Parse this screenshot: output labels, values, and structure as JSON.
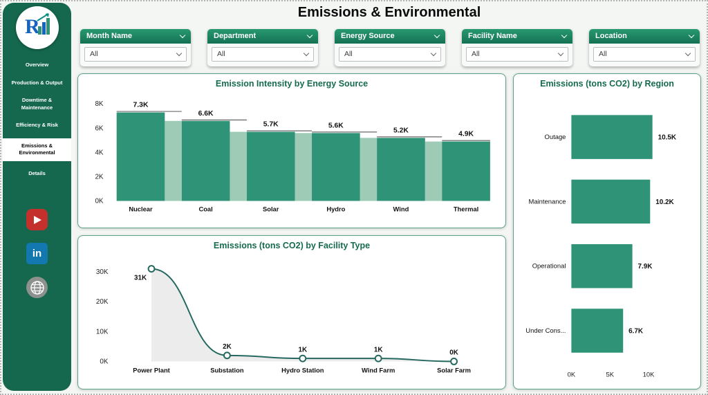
{
  "title": "Emissions & Environmental",
  "colors": {
    "sidebar": "#15684e",
    "bar": "#2f9477",
    "bar_light": "#9dcbb6",
    "line": "#24685f",
    "area": "#ececec",
    "title_green": "#156a4f"
  },
  "sidebar": {
    "items": [
      {
        "label": "Overview"
      },
      {
        "label": "Production & Output"
      },
      {
        "label": "Downtime & Maintenance"
      },
      {
        "label": "Efficiency & Risk"
      },
      {
        "label": "Emissions & Environmental",
        "active": true
      },
      {
        "label": "Details"
      }
    ],
    "social": [
      {
        "name": "youtube"
      },
      {
        "name": "linkedin",
        "glyph": "in"
      },
      {
        "name": "website"
      }
    ]
  },
  "filters": [
    {
      "label": "Month Name",
      "value": "All"
    },
    {
      "label": "Department",
      "value": "All"
    },
    {
      "label": "Energy Source",
      "value": "All"
    },
    {
      "label": "Facility Name",
      "value": "All"
    },
    {
      "label": "Location",
      "value": "All"
    }
  ],
  "chart_data": [
    {
      "type": "bar",
      "title": "Emission Intensity by Energy Source",
      "categories": [
        "Nuclear",
        "Coal",
        "Solar",
        "Hydro",
        "Wind",
        "Thermal"
      ],
      "values": [
        7300,
        6600,
        5700,
        5600,
        5200,
        4900
      ],
      "labels": [
        "7.3K",
        "6.6K",
        "5.7K",
        "5.6K",
        "5.2K",
        "4.9K"
      ],
      "ylim": [
        0,
        8000
      ],
      "yticks": [
        "0K",
        "2K",
        "4K",
        "6K",
        "8K"
      ],
      "ytick_values": [
        0,
        2000,
        4000,
        6000,
        8000
      ],
      "grid": false,
      "legend": false
    },
    {
      "type": "line",
      "title": "Emissions (tons CO2) by Facility Type",
      "categories": [
        "Power Plant",
        "Substation",
        "Hydro Station",
        "Wind Farm",
        "Solar Farm"
      ],
      "values": [
        31000,
        2000,
        1000,
        1000,
        0
      ],
      "labels": [
        "31K",
        "2K",
        "1K",
        "1K",
        "0K"
      ],
      "ylim": [
        0,
        32000
      ],
      "yticks": [
        "0K",
        "10K",
        "20K",
        "30K"
      ],
      "ytick_values": [
        0,
        10000,
        20000,
        30000
      ],
      "area_fill": true,
      "grid": false,
      "legend": false
    },
    {
      "type": "bar-horizontal",
      "title": "Emissions (tons CO2) by Region",
      "categories": [
        "Outage",
        "Maintenance",
        "Operational",
        "Under Cons..."
      ],
      "values": [
        10500,
        10200,
        7900,
        6700
      ],
      "labels": [
        "10.5K",
        "10.2K",
        "7.9K",
        "6.7K"
      ],
      "xlim": [
        0,
        12000
      ],
      "xticks": [
        "0K",
        "5K",
        "10K"
      ],
      "xtick_values": [
        0,
        5000,
        10000
      ],
      "grid": false,
      "legend": false
    }
  ]
}
